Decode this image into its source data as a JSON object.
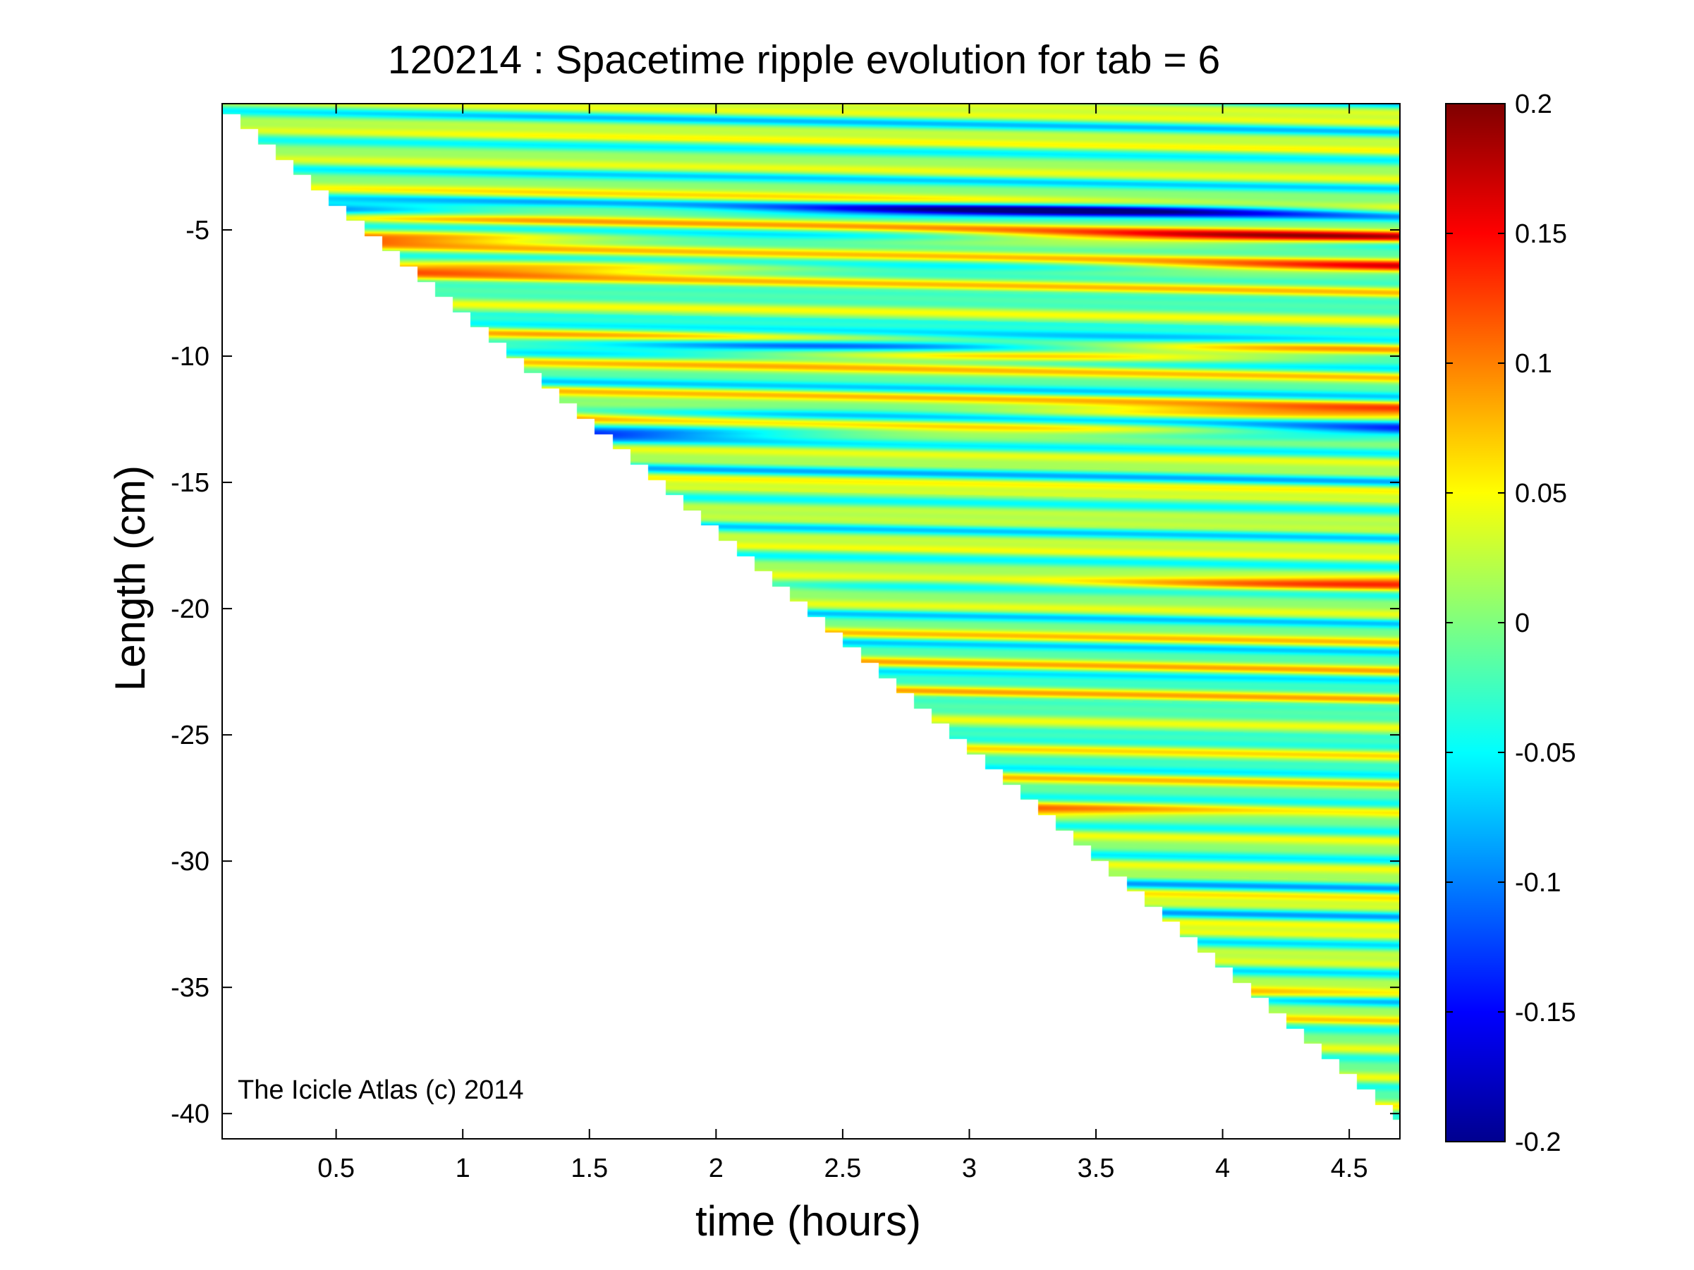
{
  "chart_data": {
    "type": "heatmap",
    "title": "120214 : Spacetime ripple evolution for tab = 6",
    "xlabel": "time (hours)",
    "ylabel": "Length (cm)",
    "annotation": "The Icicle Atlas (c) 2014",
    "xlim": [
      0.05,
      4.7
    ],
    "ylim": [
      -41,
      0
    ],
    "x_ticks": [
      0.5,
      1,
      1.5,
      2,
      2.5,
      3,
      3.5,
      4,
      4.5
    ],
    "x_tick_labels": [
      "0.5",
      "1",
      "1.5",
      "2",
      "2.5",
      "3",
      "3.5",
      "4",
      "4.5"
    ],
    "y_ticks": [
      -5,
      -10,
      -15,
      -20,
      -25,
      -30,
      -35,
      -40
    ],
    "y_tick_labels": [
      "-5",
      "-10",
      "-15",
      "-20",
      "-25",
      "-30",
      "-35",
      "-40"
    ],
    "colorbar": {
      "colormap": "jet",
      "range": [
        -0.2,
        0.2
      ],
      "ticks": [
        0.2,
        0.15,
        0.1,
        0.05,
        0,
        -0.05,
        -0.1,
        -0.15,
        -0.2
      ],
      "tick_labels": [
        "0.2",
        "0.15",
        "0.1",
        "0.05",
        "0",
        "-0.05",
        "-0.1",
        "-0.15",
        "-0.2"
      ]
    },
    "grid": false,
    "data_region": {
      "description_free": true,
      "front_start": [
        0.05,
        -0.4
      ],
      "front_end": [
        4.7,
        -40.5
      ]
    },
    "ripple_wavelength_cm": 1.15,
    "ripple_drift_cm_per_hour": 0.18,
    "ripple_amplitude_range": [
      -0.2,
      0.2
    ],
    "highlight_bands": [
      {
        "y": -4.2,
        "amplitude": -0.15
      },
      {
        "y": -5.3,
        "amplitude": 0.13
      },
      {
        "y": -6.5,
        "amplitude": 0.11
      },
      {
        "y": -9.5,
        "amplitude": -0.13
      },
      {
        "y": -10.0,
        "amplitude": 0.1
      },
      {
        "y": -12.2,
        "amplitude": 0.09
      },
      {
        "y": -13.0,
        "amplitude": -0.14
      },
      {
        "y": -19.0,
        "amplitude": 0.1
      },
      {
        "y": -28.0,
        "amplitude": 0.1
      },
      {
        "y": -35.3,
        "amplitude": 0.09
      }
    ]
  }
}
